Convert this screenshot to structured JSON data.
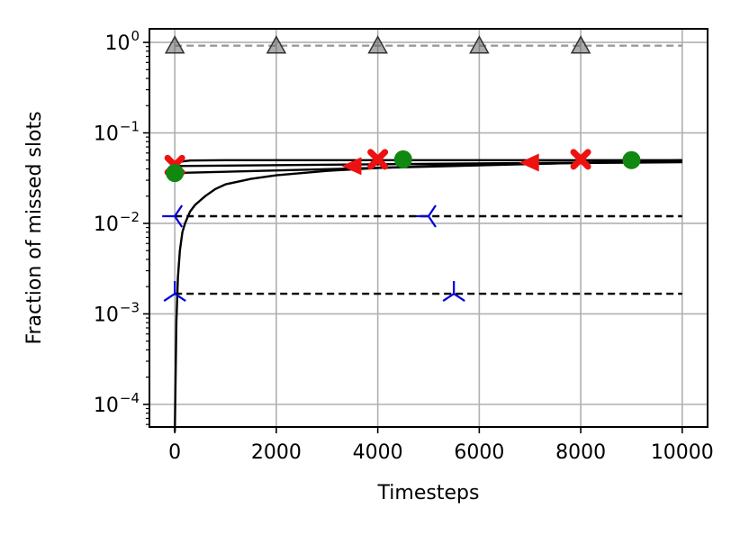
{
  "chart_data": {
    "type": "line",
    "title": "",
    "xlabel": "Timesteps",
    "ylabel": "Fraction of missed slots",
    "xlim": [
      -500,
      10500
    ],
    "ylim_log10": [
      -4.25,
      0.15
    ],
    "yscale": "log",
    "grid": true,
    "x_ticks": [
      0,
      2000,
      4000,
      6000,
      8000,
      10000
    ],
    "x_tick_labels": [
      "0",
      "2000",
      "4000",
      "6000",
      "8000",
      "10000"
    ],
    "y_ticks": [
      1,
      0.1,
      0.01,
      0.001,
      0.0001
    ],
    "y_tick_labels": [
      {
        "base": "10",
        "exp": "0"
      },
      {
        "base": "10",
        "exp": "−1"
      },
      {
        "base": "10",
        "exp": "−2"
      },
      {
        "base": "10",
        "exp": "−3"
      },
      {
        "base": "10",
        "exp": "−4"
      }
    ],
    "series": [
      {
        "style": "dashed",
        "color": "#999999",
        "marker": "triangle-up",
        "marker_color": "#666666",
        "points": [
          [
            0,
            0.92
          ],
          [
            10000,
            0.92
          ]
        ],
        "markers": [
          [
            0,
            0.92
          ],
          [
            2000,
            0.92
          ],
          [
            4000,
            0.92
          ],
          [
            6000,
            0.92
          ],
          [
            8000,
            0.92
          ]
        ]
      },
      {
        "style": "solid",
        "color": "#000000",
        "marker": "x",
        "marker_color": "#ee1111",
        "points": [
          [
            0,
            0.044
          ],
          [
            100,
            0.048
          ],
          [
            300,
            0.0495
          ],
          [
            1000,
            0.05
          ],
          [
            10000,
            0.05
          ]
        ],
        "markers": [
          [
            0,
            0.044
          ],
          [
            4000,
            0.051
          ],
          [
            8000,
            0.051
          ]
        ]
      },
      {
        "style": "solid",
        "color": "#000000",
        "marker": "triangle-left",
        "marker_color": "#ee1111",
        "points": [
          [
            0,
            0.043
          ],
          [
            10000,
            0.048
          ]
        ],
        "markers": [
          [
            3500,
            0.043
          ],
          [
            7000,
            0.047
          ]
        ]
      },
      {
        "style": "solid",
        "color": "#000000",
        "marker": "circle",
        "marker_color": "#118811",
        "points": [
          [
            0,
            0.036
          ],
          [
            10000,
            0.05
          ]
        ],
        "markers": [
          [
            0,
            0.036
          ],
          [
            4500,
            0.051
          ],
          [
            9000,
            0.05
          ]
        ]
      },
      {
        "style": "solid",
        "color": "#000000",
        "marker": "none",
        "marker_color": "#000000",
        "points": [
          [
            0,
            5e-05
          ],
          [
            30,
            0.0008
          ],
          [
            60,
            0.0025
          ],
          [
            100,
            0.005
          ],
          [
            150,
            0.008
          ],
          [
            200,
            0.01
          ],
          [
            300,
            0.0135
          ],
          [
            400,
            0.016
          ],
          [
            600,
            0.02
          ],
          [
            800,
            0.024
          ],
          [
            1000,
            0.027
          ],
          [
            1500,
            0.031
          ],
          [
            2000,
            0.034
          ],
          [
            3000,
            0.038
          ],
          [
            4000,
            0.041
          ],
          [
            5000,
            0.043
          ],
          [
            6000,
            0.0445
          ],
          [
            7000,
            0.0455
          ],
          [
            8000,
            0.0465
          ],
          [
            9000,
            0.047
          ],
          [
            10000,
            0.0475
          ]
        ],
        "markers": []
      },
      {
        "style": "dashed",
        "color": "#000000",
        "marker": "tri-left",
        "marker_color": "#0000dd",
        "points": [
          [
            0,
            0.012
          ],
          [
            10000,
            0.012
          ]
        ],
        "markers": [
          [
            0,
            0.012
          ],
          [
            5000,
            0.012
          ]
        ]
      },
      {
        "style": "dashed",
        "color": "#000000",
        "marker": "tri-down",
        "marker_color": "#0000dd",
        "points": [
          [
            0,
            0.00167
          ],
          [
            10000,
            0.00167
          ]
        ],
        "markers": [
          [
            0,
            0.00167
          ],
          [
            5500,
            0.00167
          ]
        ]
      }
    ]
  }
}
